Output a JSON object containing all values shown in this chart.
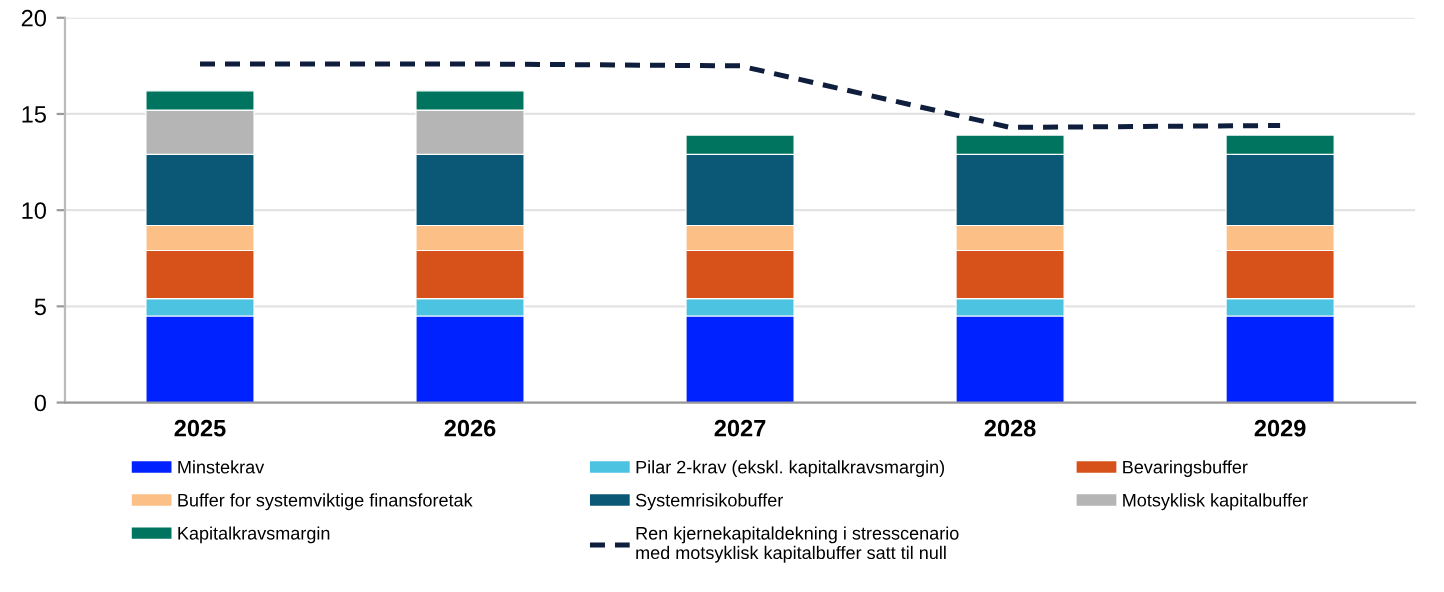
{
  "chart_data": {
    "type": "bar",
    "stacked": true,
    "categories": [
      "2025",
      "2026",
      "2027",
      "2028",
      "2029"
    ],
    "series": [
      {
        "name": "Minstekrav",
        "color": "#0022ff",
        "values": [
          4.5,
          4.5,
          4.5,
          4.5,
          4.5
        ]
      },
      {
        "name": "Pilar 2-krav (ekskl. kapitalkravsmargin)",
        "color": "#4dc3e2",
        "values": [
          0.9,
          0.9,
          0.9,
          0.9,
          0.9
        ]
      },
      {
        "name": "Bevaringsbuffer",
        "color": "#d7521a",
        "values": [
          2.5,
          2.5,
          2.5,
          2.5,
          2.5
        ]
      },
      {
        "name": "Buffer for systemviktige finansforetak",
        "color": "#fcbf86",
        "values": [
          1.3,
          1.3,
          1.3,
          1.3,
          1.3
        ]
      },
      {
        "name": "Systemrisikobuffer",
        "color": "#0a5875",
        "values": [
          3.7,
          3.7,
          3.7,
          3.7,
          3.7
        ]
      },
      {
        "name": "Motsyklisk kapitalbuffer",
        "color": "#b5b5b5",
        "values": [
          2.3,
          2.3,
          null,
          null,
          null
        ]
      },
      {
        "name": "Kapitalkravsmargin",
        "color": "#00745e",
        "values": [
          1.0,
          1.0,
          1.0,
          1.0,
          1.0
        ]
      },
      {
        "name": "Ren kjernekapitaldekning i stresscenario\nmed motsyklisk kapitalbuffer satt til null",
        "type": "line",
        "color": "#0f1e3c",
        "line_style": "dashed",
        "values": [
          17.6,
          17.6,
          17.5,
          14.3,
          14.4
        ]
      }
    ],
    "ylim": [
      0,
      20
    ],
    "yticks": [
      0,
      5,
      10,
      15,
      20
    ],
    "grid": "y",
    "legend": "bottom"
  }
}
